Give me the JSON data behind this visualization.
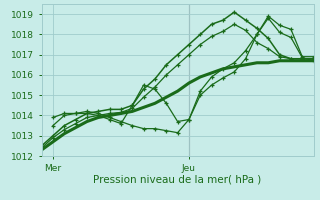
{
  "xlabel": "Pression niveau de la mer( hPa )",
  "background_color": "#c8ece8",
  "grid_color": "#a0cccc",
  "line_color": "#1a6b1a",
  "ylim": [
    1012,
    1019.5
  ],
  "xlim": [
    0,
    48
  ],
  "x_ticks_pos": [
    2,
    26
  ],
  "x_tick_labels": [
    "Mer",
    "Jeu"
  ],
  "y_ticks": [
    1012,
    1013,
    1014,
    1015,
    1016,
    1017,
    1018,
    1019
  ],
  "vline_x": 26,
  "series": [
    {
      "x": [
        0,
        2,
        4,
        6,
        8,
        10,
        12,
        14,
        16,
        18,
        20,
        22,
        24,
        26,
        28,
        30,
        32,
        34,
        36,
        38,
        40,
        42,
        44,
        46,
        48
      ],
      "y": [
        1012.3,
        1012.7,
        1013.1,
        1013.4,
        1013.7,
        1013.9,
        1014.0,
        1014.1,
        1014.2,
        1014.4,
        1014.6,
        1014.9,
        1015.2,
        1015.6,
        1015.9,
        1016.1,
        1016.3,
        1016.4,
        1016.5,
        1016.6,
        1016.6,
        1016.7,
        1016.7,
        1016.7,
        1016.7
      ],
      "marker": null,
      "lw": 2.2
    },
    {
      "x": [
        0,
        2,
        4,
        6,
        8,
        10,
        12,
        14,
        16,
        18,
        20,
        22,
        24,
        26,
        28,
        30,
        32,
        34,
        36,
        38,
        40,
        42,
        44,
        46,
        48
      ],
      "y": [
        1012.5,
        1013.0,
        1013.5,
        1013.8,
        1014.1,
        1014.2,
        1014.3,
        1014.3,
        1014.5,
        1015.3,
        1015.8,
        1016.5,
        1017.0,
        1017.5,
        1018.0,
        1018.5,
        1018.7,
        1019.1,
        1018.7,
        1018.3,
        1017.8,
        1017.0,
        1016.8,
        1016.8,
        1016.8
      ],
      "marker": "+",
      "lw": 1.1,
      "ms": 3.5
    },
    {
      "x": [
        0,
        2,
        4,
        6,
        8,
        10,
        12,
        14,
        16,
        18,
        20,
        22,
        24,
        26,
        28,
        30,
        32,
        34,
        36,
        38,
        40,
        42,
        44,
        46,
        48
      ],
      "y": [
        1012.4,
        1012.9,
        1013.3,
        1013.6,
        1013.9,
        1014.0,
        1014.1,
        1014.15,
        1014.35,
        1014.9,
        1015.4,
        1016.0,
        1016.5,
        1017.0,
        1017.5,
        1017.9,
        1018.15,
        1018.5,
        1018.2,
        1017.6,
        1017.3,
        1016.9,
        1016.8,
        1016.8,
        1016.8
      ],
      "marker": "+",
      "lw": 0.9,
      "ms": 3.5
    },
    {
      "x": [
        2,
        4,
        6,
        8,
        10,
        12,
        14,
        16,
        18,
        20,
        22,
        24,
        26,
        28,
        30,
        32,
        34,
        36,
        38,
        40,
        42,
        44,
        46,
        48
      ],
      "y": [
        1013.5,
        1014.0,
        1014.1,
        1014.2,
        1014.1,
        1013.9,
        1013.7,
        1013.5,
        1013.35,
        1013.35,
        1013.25,
        1013.15,
        1013.8,
        1015.0,
        1015.5,
        1015.85,
        1016.15,
        1016.8,
        1018.0,
        1018.9,
        1018.45,
        1018.25,
        1016.9,
        1016.9
      ],
      "marker": "+",
      "lw": 0.9,
      "ms": 3.5
    },
    {
      "x": [
        2,
        4,
        6,
        8,
        10,
        12,
        14,
        16,
        18,
        20,
        22,
        24,
        26,
        28,
        30,
        32,
        34,
        36,
        38,
        40,
        42,
        44,
        46,
        48
      ],
      "y": [
        1013.9,
        1014.1,
        1014.1,
        1014.1,
        1014.0,
        1013.8,
        1013.6,
        1014.5,
        1015.5,
        1015.3,
        1014.6,
        1013.7,
        1013.8,
        1015.2,
        1015.9,
        1016.3,
        1016.6,
        1017.2,
        1018.0,
        1018.8,
        1018.1,
        1017.85,
        1016.85,
        1016.7
      ],
      "marker": "+",
      "lw": 0.9,
      "ms": 3.5
    }
  ]
}
